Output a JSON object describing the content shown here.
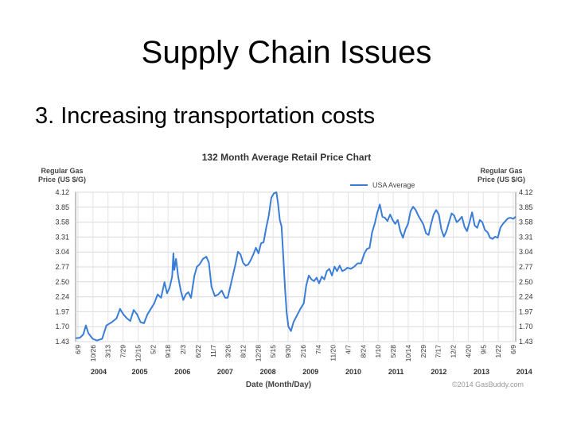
{
  "slide": {
    "title": "Supply Chain Issues",
    "bullet": "3. Increasing transportation costs"
  },
  "chart_data": {
    "type": "line",
    "title": "132 Month Average Retail Price Chart",
    "ylabel_left": [
      "Regular Gas",
      "Price (US $/G)"
    ],
    "ylabel_right": [
      "Regular Gas",
      "Price (US $/G)"
    ],
    "xlabel": "Date (Month/Day)",
    "credit": "©2014 GasBuddy.com",
    "legend": {
      "label": "USA Average",
      "placement": "top-right"
    },
    "grid": true,
    "ylim": [
      1.43,
      4.12
    ],
    "y_ticks": [
      "1.43",
      "1.70",
      "1.97",
      "2.24",
      "2.50",
      "2.77",
      "3.04",
      "3.31",
      "3.58",
      "3.85",
      "4.12"
    ],
    "x_ticks": [
      "6/9",
      "10/26",
      "3/13",
      "7/29",
      "12/15",
      "5/2",
      "9/18",
      "2/3",
      "6/22",
      "11/7",
      "3/26",
      "8/12",
      "12/28",
      "5/15",
      "9/30",
      "2/16",
      "7/4",
      "11/20",
      "4/7",
      "8/24",
      "1/10",
      "5/28",
      "10/14",
      "2/29",
      "7/17",
      "12/2",
      "4/20",
      "9/5",
      "1/22",
      "6/9"
    ],
    "year_ticks": [
      {
        "label": "2004",
        "t": 0.54
      },
      {
        "label": "2005",
        "t": 1.5
      },
      {
        "label": "2006",
        "t": 2.5
      },
      {
        "label": "2007",
        "t": 3.5
      },
      {
        "label": "2008",
        "t": 4.5
      },
      {
        "label": "2009",
        "t": 5.5
      },
      {
        "label": "2010",
        "t": 6.5
      },
      {
        "label": "2011",
        "t": 7.5
      },
      {
        "label": "2012",
        "t": 8.5
      },
      {
        "label": "2013",
        "t": 9.5
      },
      {
        "label": "2014",
        "t": 10.5
      }
    ],
    "series": [
      {
        "name": "USA Average",
        "color": "#3a7dd6",
        "points": [
          [
            0.0,
            1.49
          ],
          [
            0.1,
            1.5
          ],
          [
            0.18,
            1.56
          ],
          [
            0.24,
            1.72
          ],
          [
            0.3,
            1.58
          ],
          [
            0.4,
            1.48
          ],
          [
            0.5,
            1.45
          ],
          [
            0.62,
            1.48
          ],
          [
            0.72,
            1.72
          ],
          [
            0.85,
            1.78
          ],
          [
            0.96,
            1.85
          ],
          [
            1.04,
            2.02
          ],
          [
            1.12,
            1.92
          ],
          [
            1.2,
            1.85
          ],
          [
            1.28,
            1.8
          ],
          [
            1.36,
            2.0
          ],
          [
            1.44,
            1.92
          ],
          [
            1.52,
            1.78
          ],
          [
            1.6,
            1.76
          ],
          [
            1.68,
            1.92
          ],
          [
            1.76,
            2.02
          ],
          [
            1.84,
            2.12
          ],
          [
            1.92,
            2.28
          ],
          [
            2.0,
            2.22
          ],
          [
            2.08,
            2.5
          ],
          [
            2.14,
            2.3
          ],
          [
            2.2,
            2.4
          ],
          [
            2.26,
            2.6
          ],
          [
            2.29,
            3.02
          ],
          [
            2.31,
            2.72
          ],
          [
            2.35,
            2.92
          ],
          [
            2.4,
            2.6
          ],
          [
            2.46,
            2.35
          ],
          [
            2.52,
            2.18
          ],
          [
            2.58,
            2.28
          ],
          [
            2.64,
            2.32
          ],
          [
            2.7,
            2.22
          ],
          [
            2.78,
            2.62
          ],
          [
            2.84,
            2.78
          ],
          [
            2.9,
            2.82
          ],
          [
            2.98,
            2.92
          ],
          [
            3.06,
            2.96
          ],
          [
            3.12,
            2.85
          ],
          [
            3.18,
            2.42
          ],
          [
            3.26,
            2.25
          ],
          [
            3.34,
            2.28
          ],
          [
            3.42,
            2.35
          ],
          [
            3.5,
            2.22
          ],
          [
            3.56,
            2.22
          ],
          [
            3.62,
            2.42
          ],
          [
            3.68,
            2.62
          ],
          [
            3.74,
            2.82
          ],
          [
            3.8,
            3.05
          ],
          [
            3.86,
            3.0
          ],
          [
            3.92,
            2.85
          ],
          [
            3.98,
            2.8
          ],
          [
            4.04,
            2.82
          ],
          [
            4.1,
            2.9
          ],
          [
            4.16,
            3.0
          ],
          [
            4.22,
            3.12
          ],
          [
            4.28,
            3.02
          ],
          [
            4.34,
            3.2
          ],
          [
            4.4,
            3.22
          ],
          [
            4.46,
            3.48
          ],
          [
            4.52,
            3.7
          ],
          [
            4.58,
            4.02
          ],
          [
            4.64,
            4.1
          ],
          [
            4.7,
            4.12
          ],
          [
            4.74,
            3.9
          ],
          [
            4.78,
            3.62
          ],
          [
            4.82,
            3.5
          ],
          [
            4.86,
            2.98
          ],
          [
            4.9,
            2.4
          ],
          [
            4.94,
            1.95
          ],
          [
            4.98,
            1.7
          ],
          [
            5.04,
            1.62
          ],
          [
            5.1,
            1.78
          ],
          [
            5.18,
            1.9
          ],
          [
            5.26,
            2.02
          ],
          [
            5.34,
            2.12
          ],
          [
            5.4,
            2.45
          ],
          [
            5.46,
            2.62
          ],
          [
            5.52,
            2.55
          ],
          [
            5.58,
            2.52
          ],
          [
            5.64,
            2.58
          ],
          [
            5.7,
            2.48
          ],
          [
            5.76,
            2.6
          ],
          [
            5.82,
            2.55
          ],
          [
            5.88,
            2.7
          ],
          [
            5.94,
            2.74
          ],
          [
            6.0,
            2.62
          ],
          [
            6.06,
            2.78
          ],
          [
            6.12,
            2.7
          ],
          [
            6.18,
            2.8
          ],
          [
            6.24,
            2.7
          ],
          [
            6.3,
            2.72
          ],
          [
            6.36,
            2.76
          ],
          [
            6.44,
            2.74
          ],
          [
            6.52,
            2.78
          ],
          [
            6.6,
            2.84
          ],
          [
            6.68,
            2.84
          ],
          [
            6.76,
            3.02
          ],
          [
            6.82,
            3.1
          ],
          [
            6.88,
            3.12
          ],
          [
            6.94,
            3.4
          ],
          [
            7.0,
            3.55
          ],
          [
            7.06,
            3.75
          ],
          [
            7.12,
            3.9
          ],
          [
            7.18,
            3.68
          ],
          [
            7.24,
            3.66
          ],
          [
            7.3,
            3.6
          ],
          [
            7.36,
            3.72
          ],
          [
            7.42,
            3.62
          ],
          [
            7.48,
            3.55
          ],
          [
            7.54,
            3.62
          ],
          [
            7.6,
            3.42
          ],
          [
            7.66,
            3.3
          ],
          [
            7.72,
            3.45
          ],
          [
            7.78,
            3.55
          ],
          [
            7.84,
            3.78
          ],
          [
            7.9,
            3.86
          ],
          [
            7.96,
            3.8
          ],
          [
            8.02,
            3.7
          ],
          [
            8.08,
            3.62
          ],
          [
            8.14,
            3.54
          ],
          [
            8.2,
            3.38
          ],
          [
            8.26,
            3.35
          ],
          [
            8.32,
            3.55
          ],
          [
            8.38,
            3.72
          ],
          [
            8.44,
            3.8
          ],
          [
            8.5,
            3.72
          ],
          [
            8.56,
            3.45
          ],
          [
            8.62,
            3.32
          ],
          [
            8.68,
            3.42
          ],
          [
            8.74,
            3.58
          ],
          [
            8.8,
            3.74
          ],
          [
            8.86,
            3.7
          ],
          [
            8.92,
            3.58
          ],
          [
            8.98,
            3.62
          ],
          [
            9.04,
            3.68
          ],
          [
            9.1,
            3.5
          ],
          [
            9.16,
            3.42
          ],
          [
            9.22,
            3.58
          ],
          [
            9.28,
            3.76
          ],
          [
            9.34,
            3.52
          ],
          [
            9.4,
            3.48
          ],
          [
            9.46,
            3.62
          ],
          [
            9.52,
            3.58
          ],
          [
            9.58,
            3.44
          ],
          [
            9.64,
            3.4
          ],
          [
            9.7,
            3.3
          ],
          [
            9.76,
            3.28
          ],
          [
            9.82,
            3.32
          ],
          [
            9.88,
            3.3
          ],
          [
            9.94,
            3.48
          ],
          [
            10.0,
            3.55
          ],
          [
            10.06,
            3.6
          ],
          [
            10.12,
            3.65
          ],
          [
            10.18,
            3.66
          ],
          [
            10.24,
            3.64
          ],
          [
            10.3,
            3.68
          ]
        ]
      }
    ]
  }
}
